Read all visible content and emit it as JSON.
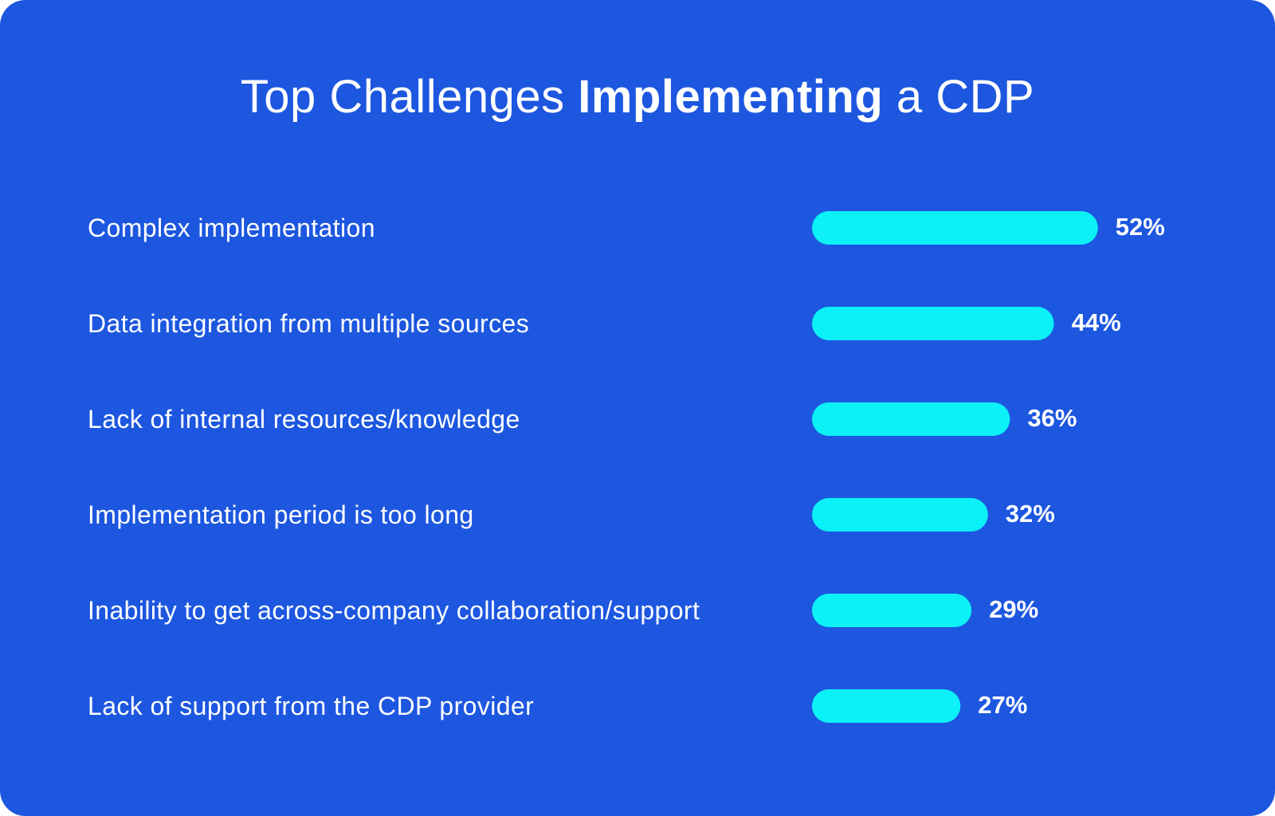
{
  "title": {
    "prefix": "Top Challenges ",
    "emphasis": "Implementing",
    "suffix": " a CDP"
  },
  "colors": {
    "background": "#1d57e0",
    "bar": "#0cf1f7",
    "text": "#ffffff"
  },
  "chart_data": {
    "type": "bar",
    "orientation": "horizontal",
    "title": "Top Challenges Implementing a CDP",
    "categories": [
      "Complex implementation",
      "Data integration from multiple sources",
      "Lack of internal resources/knowledge",
      "Implementation period is too long",
      "Inability to get across-company collaboration/support",
      "Lack of support from the CDP provider"
    ],
    "values": [
      52,
      44,
      36,
      32,
      29,
      27
    ],
    "value_labels": [
      "52%",
      "44%",
      "36%",
      "32%",
      "29%",
      "27%"
    ],
    "unit": "%",
    "xlabel": "",
    "ylabel": "",
    "grid": false,
    "legend": false
  }
}
